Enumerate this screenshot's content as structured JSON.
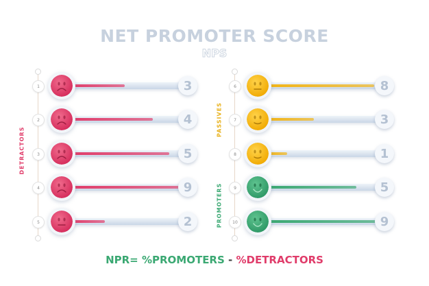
{
  "title": "NET PROMOTER SCORE",
  "subtitle": "NPS",
  "colors": {
    "detractor": "#e03c6a",
    "passive": "#f2b415",
    "promoter": "#3aa872",
    "track": "#c9d6e6"
  },
  "groups": [
    {
      "label": "DETRACTORS",
      "color": "#e03c6a"
    },
    {
      "label": "PASSIVES",
      "color": "#e8b019"
    },
    {
      "label": "PROMOTERS",
      "color": "#3aa872"
    }
  ],
  "rows": [
    {
      "index": "1",
      "value": "3",
      "type": "detractor",
      "face": "sad",
      "fill_pct": 46
    },
    {
      "index": "2",
      "value": "4",
      "type": "detractor",
      "face": "sad",
      "fill_pct": 70
    },
    {
      "index": "3",
      "value": "5",
      "type": "detractor",
      "face": "sad",
      "fill_pct": 84
    },
    {
      "index": "4",
      "value": "9",
      "type": "detractor",
      "face": "sad",
      "fill_pct": 97
    },
    {
      "index": "5",
      "value": "2",
      "type": "detractor",
      "face": "neutral",
      "fill_pct": 29
    },
    {
      "index": "6",
      "value": "8",
      "type": "passive",
      "face": "neutral",
      "fill_pct": 91
    },
    {
      "index": "7",
      "value": "3",
      "type": "passive",
      "face": "slight-smile",
      "fill_pct": 40
    },
    {
      "index": "8",
      "value": "1",
      "type": "passive",
      "face": "slight-smile",
      "fill_pct": 17
    },
    {
      "index": "9",
      "value": "5",
      "type": "promoter",
      "face": "smile",
      "fill_pct": 76
    },
    {
      "index": "10",
      "value": "9",
      "type": "promoter",
      "face": "smile",
      "fill_pct": 98
    }
  ],
  "formula": {
    "prefix": "NPR= ",
    "promoters": "%PROMOTERS",
    "sep": " - ",
    "detractors": "%DETRACTORS"
  }
}
